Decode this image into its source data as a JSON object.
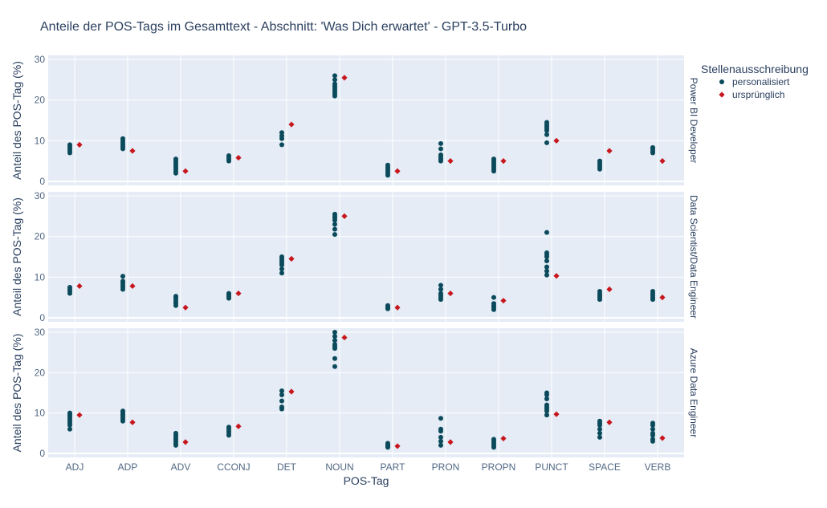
{
  "chart_data": {
    "type": "scatter",
    "title": "Anteile der POS-Tags im Gesamttext - Abschnitt: 'Was Dich erwartet' - GPT-3.5-Turbo",
    "xlabel": "POS-Tag",
    "ylabel": "Anteil des POS-Tag (%)",
    "categories": [
      "ADJ",
      "ADP",
      "ADV",
      "CCONJ",
      "DET",
      "NOUN",
      "PART",
      "PRON",
      "PROPN",
      "PUNCT",
      "SPACE",
      "VERB"
    ],
    "yticks": [
      0,
      10,
      20,
      30
    ],
    "ylim": [
      -1,
      31
    ],
    "grid": true,
    "legend": {
      "title": "Stellenausschreibung",
      "position": "top-right",
      "entries": [
        {
          "name": "personalisiert",
          "color": "#0b4a5b",
          "symbol": "circle"
        },
        {
          "name": "ursprünglich",
          "color": "#c8161d",
          "symbol": "diamond"
        }
      ]
    },
    "facets": [
      {
        "label": "Power BI Developer",
        "personalisiert": [
          [
            7.0,
            7.5,
            8.0,
            8.5,
            9.0
          ],
          [
            8.0,
            8.5,
            9.0,
            9.5,
            10.0,
            10.5
          ],
          [
            2.0,
            2.5,
            3.0,
            3.5,
            4.0,
            4.5,
            5.0,
            5.5
          ],
          [
            5.0,
            5.5,
            6.0,
            6.3
          ],
          [
            9.0,
            10.5,
            11.2,
            12.0
          ],
          [
            21.0,
            21.5,
            22.0,
            22.5,
            23.0,
            23.5,
            24.0,
            25.0,
            26.0
          ],
          [
            1.5,
            2.0,
            2.5,
            3.0,
            3.5,
            4.0
          ],
          [
            5.0,
            5.5,
            6.0,
            6.5,
            8.0,
            9.3
          ],
          [
            2.5,
            3.0,
            3.5,
            4.0,
            4.5,
            5.0,
            5.5
          ],
          [
            9.5,
            11.5,
            12.5,
            13.0,
            13.5,
            14.0,
            14.5
          ],
          [
            3.0,
            3.5,
            4.0,
            4.5,
            5.0
          ],
          [
            7.0,
            7.5,
            8.0,
            8.3
          ]
        ],
        "urspruenglich": [
          9.0,
          7.5,
          2.5,
          5.8,
          14.0,
          25.5,
          2.5,
          5.0,
          5.0,
          10.0,
          7.5,
          5.0
        ]
      },
      {
        "label": "Data Scientist/Data Engineer",
        "personalisiert": [
          [
            6.0,
            6.5,
            7.0,
            7.5
          ],
          [
            7.0,
            7.5,
            8.0,
            8.5,
            9.0,
            10.2
          ],
          [
            3.0,
            3.5,
            4.0,
            4.5,
            5.0,
            5.3
          ],
          [
            4.8,
            5.2,
            5.6,
            6.0
          ],
          [
            11.0,
            12.0,
            13.0,
            13.5,
            14.0,
            14.5,
            15.0
          ],
          [
            20.5,
            21.8,
            23.0,
            24.0,
            24.5,
            25.0,
            25.5
          ],
          [
            2.2,
            2.5,
            2.8,
            3.0
          ],
          [
            4.5,
            5.0,
            5.5,
            6.0,
            7.0,
            8.0
          ],
          [
            2.0,
            2.5,
            3.0,
            3.5,
            5.0
          ],
          [
            10.5,
            11.5,
            12.5,
            14.0,
            15.0,
            15.5,
            16.0,
            21.0
          ],
          [
            4.5,
            5.0,
            5.5,
            6.0,
            6.5
          ],
          [
            4.5,
            5.0,
            5.5,
            6.0,
            6.5
          ]
        ],
        "urspruenglich": [
          7.8,
          7.8,
          2.5,
          6.0,
          14.5,
          25.0,
          2.5,
          6.0,
          4.2,
          10.3,
          7.0,
          5.0
        ]
      },
      {
        "label": "Azure Data Engineer",
        "personalisiert": [
          [
            6.0,
            7.0,
            7.5,
            8.0,
            8.5,
            9.0,
            9.5,
            10.0
          ],
          [
            8.0,
            8.5,
            9.0,
            9.5,
            10.0,
            10.5
          ],
          [
            2.0,
            2.5,
            3.0,
            3.5,
            4.0,
            4.5,
            5.0
          ],
          [
            4.5,
            5.0,
            5.5,
            6.0,
            6.5
          ],
          [
            11.0,
            11.5,
            13.0,
            14.5,
            15.5
          ],
          [
            21.5,
            23.5,
            26.0,
            26.5,
            27.0,
            28.0,
            29.0,
            30.0
          ],
          [
            1.5,
            1.8,
            2.0,
            2.2,
            2.5
          ],
          [
            2.0,
            3.0,
            4.0,
            5.5,
            6.0,
            8.7
          ],
          [
            1.5,
            2.0,
            2.5,
            3.0,
            3.5
          ],
          [
            9.5,
            10.5,
            11.0,
            11.5,
            12.0,
            13.5,
            14.5,
            15.0
          ],
          [
            4.0,
            5.0,
            6.0,
            7.0,
            7.5,
            8.0
          ],
          [
            3.0,
            3.5,
            4.5,
            5.0,
            6.0,
            7.0,
            7.5
          ]
        ],
        "urspruenglich": [
          9.5,
          7.7,
          2.8,
          6.7,
          15.3,
          28.7,
          1.8,
          2.8,
          3.7,
          9.7,
          7.7,
          3.8
        ]
      }
    ]
  }
}
